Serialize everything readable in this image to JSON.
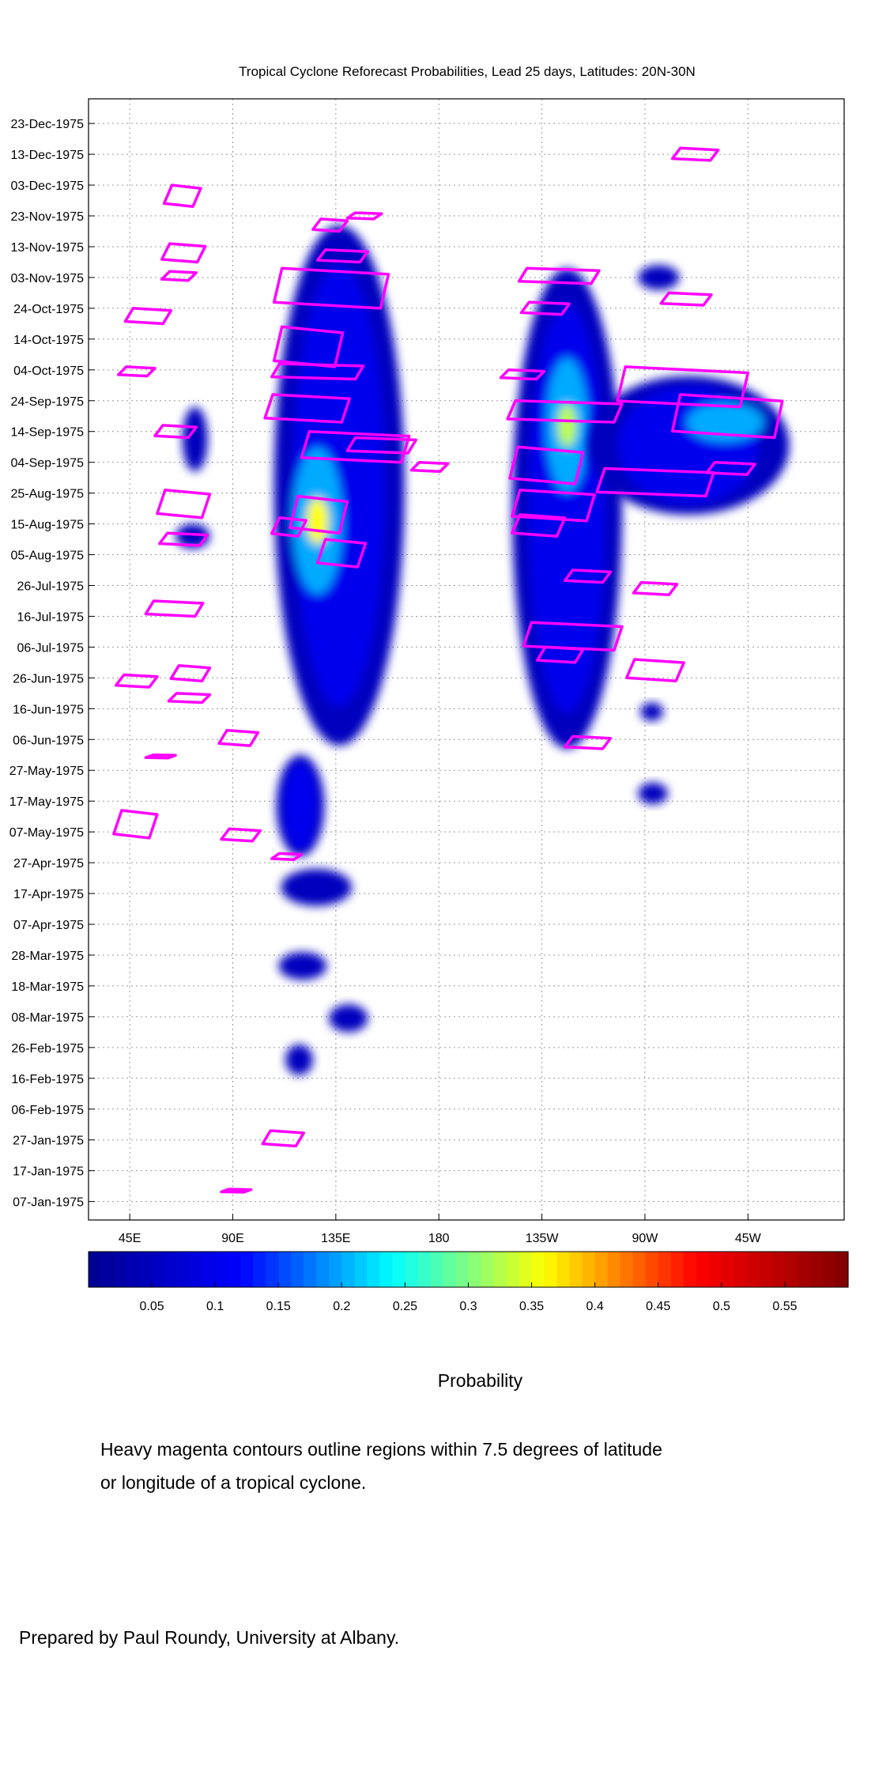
{
  "chart_data": {
    "type": "heatmap",
    "title": "Tropical Cyclone Reforecast Probabilities, Lead 25 days, Latitudes: 20N-30N",
    "x_ticks": [
      "45E",
      "90E",
      "135E",
      "180",
      "135W",
      "90W",
      "45W"
    ],
    "x_tick_values": [
      45,
      90,
      135,
      180,
      225,
      270,
      315
    ],
    "xlim": [
      27,
      357
    ],
    "x_unit": "degrees longitude east",
    "y_ticks": [
      "23-Dec-1975",
      "13-Dec-1975",
      "03-Dec-1975",
      "23-Nov-1975",
      "13-Nov-1975",
      "03-Nov-1975",
      "24-Oct-1975",
      "14-Oct-1975",
      "04-Oct-1975",
      "24-Sep-1975",
      "14-Sep-1975",
      "04-Sep-1975",
      "25-Aug-1975",
      "15-Aug-1975",
      "05-Aug-1975",
      "26-Jul-1975",
      "16-Jul-1975",
      "06-Jul-1975",
      "26-Jun-1975",
      "16-Jun-1975",
      "06-Jun-1975",
      "27-May-1975",
      "17-May-1975",
      "07-May-1975",
      "27-Apr-1975",
      "17-Apr-1975",
      "07-Apr-1975",
      "28-Mar-1975",
      "18-Mar-1975",
      "08-Mar-1975",
      "26-Feb-1975",
      "16-Feb-1975",
      "06-Feb-1975",
      "27-Jan-1975",
      "17-Jan-1975",
      "07-Jan-1975"
    ],
    "ylim": [
      "31-Dec-1975",
      "01-Jan-1975"
    ],
    "grid": true,
    "colorbar": {
      "range": [
        0,
        0.6
      ],
      "ticks": [
        "0.05",
        "0.1",
        "0.15",
        "0.2",
        "0.25",
        "0.3",
        "0.35",
        "0.4",
        "0.45",
        "0.5",
        "0.55"
      ],
      "tick_values": [
        0.05,
        0.1,
        0.15,
        0.2,
        0.25,
        0.3,
        0.35,
        0.4,
        0.45,
        0.5,
        0.55
      ],
      "label": "Probability",
      "colormap": [
        "#00008f",
        "#0000ff",
        "#00ffff",
        "#ffff00",
        "#ff0000",
        "#800000"
      ]
    },
    "probability_regions": [
      {
        "lon": [
          108,
          165
        ],
        "date": [
          "20-Nov-1975",
          "04-Jun-1975"
        ],
        "peak": 0.36,
        "peak_lon": 127,
        "peak_date": "16-Aug-1975"
      },
      {
        "lon": [
          109,
          130
        ],
        "date": [
          "01-Jun-1975",
          "29-Apr-1975"
        ],
        "peak": 0.12
      },
      {
        "lon": [
          111,
          142
        ],
        "date": [
          "25-Apr-1975",
          "13-Apr-1975"
        ],
        "peak": 0.1
      },
      {
        "lon": [
          110,
          131
        ],
        "date": [
          "29-Mar-1975",
          "20-Mar-1975"
        ],
        "peak": 0.08
      },
      {
        "lon": [
          132,
          149
        ],
        "date": [
          "12-Mar-1975",
          "03-Mar-1975"
        ],
        "peak": 0.07
      },
      {
        "lon": [
          113,
          125
        ],
        "date": [
          "27-Feb-1975",
          "17-Feb-1975"
        ],
        "peak": 0.07
      },
      {
        "lon": [
          212,
          260
        ],
        "date": [
          "06-Nov-1975",
          "03-Jun-1975"
        ],
        "peak": 0.33,
        "peak_lon": 236,
        "peak_date": "16-Sep-1975"
      },
      {
        "lon": [
          245,
          333
        ],
        "date": [
          "02-Oct-1975",
          "18-Aug-1975"
        ],
        "peak": 0.22,
        "peak_lon": 305,
        "peak_date": "17-Sep-1975"
      },
      {
        "lon": [
          267,
          285
        ],
        "date": [
          "07-Nov-1975",
          "30-Oct-1975"
        ],
        "peak": 0.08
      },
      {
        "lon": [
          68,
          79
        ],
        "date": [
          "22-Sep-1975",
          "01-Sep-1975"
        ],
        "peak": 0.07
      },
      {
        "lon": [
          65,
          80
        ],
        "date": [
          "15-Aug-1975",
          "07-Aug-1975"
        ],
        "peak": 0.07
      },
      {
        "lon": [
          267,
          280
        ],
        "date": [
          "23-May-1975",
          "16-May-1975"
        ],
        "peak": 0.06
      },
      {
        "lon": [
          268,
          278
        ],
        "date": [
          "18-Jun-1975",
          "12-Jun-1975"
        ],
        "peak": 0.05
      }
    ],
    "contour_color": "#ff00ff",
    "tc_contours": [
      {
        "lon": [
          282,
          302
        ],
        "date": [
          "15-Dec-1975",
          "11-Dec-1975"
        ]
      },
      {
        "lon": [
          60,
          76
        ],
        "date": [
          "03-Dec-1975",
          "26-Nov-1975"
        ]
      },
      {
        "lon": [
          125,
          140
        ],
        "date": [
          "22-Nov-1975",
          "18-Nov-1975"
        ]
      },
      {
        "lon": [
          140,
          155
        ],
        "date": [
          "24-Nov-1975",
          "22-Nov-1975"
        ]
      },
      {
        "lon": [
          59,
          78
        ],
        "date": [
          "14-Nov-1975",
          "08-Nov-1975"
        ]
      },
      {
        "lon": [
          127,
          149
        ],
        "date": [
          "12-Nov-1975",
          "08-Nov-1975"
        ]
      },
      {
        "lon": [
          59,
          74
        ],
        "date": [
          "05-Nov-1975",
          "02-Nov-1975"
        ]
      },
      {
        "lon": [
          108,
          158
        ],
        "date": [
          "06-Nov-1975",
          "24-Oct-1975"
        ]
      },
      {
        "lon": [
          215,
          250
        ],
        "date": [
          "06-Nov-1975",
          "01-Nov-1975"
        ]
      },
      {
        "lon": [
          277,
          299
        ],
        "date": [
          "29-Oct-1975",
          "25-Oct-1975"
        ]
      },
      {
        "lon": [
          216,
          237
        ],
        "date": [
          "26-Oct-1975",
          "22-Oct-1975"
        ]
      },
      {
        "lon": [
          43,
          63
        ],
        "date": [
          "24-Oct-1975",
          "19-Oct-1975"
        ]
      },
      {
        "lon": [
          108,
          138
        ],
        "date": [
          "18-Oct-1975",
          "05-Oct-1975"
        ]
      },
      {
        "lon": [
          40,
          56
        ],
        "date": [
          "05-Oct-1975",
          "02-Oct-1975"
        ]
      },
      {
        "lon": [
          107,
          147
        ],
        "date": [
          "06-Oct-1975",
          "01-Oct-1975"
        ]
      },
      {
        "lon": [
          207,
          226
        ],
        "date": [
          "04-Oct-1975",
          "01-Oct-1975"
        ]
      },
      {
        "lon": [
          258,
          315
        ],
        "date": [
          "05-Oct-1975",
          "22-Sep-1975"
        ]
      },
      {
        "lon": [
          104,
          141
        ],
        "date": [
          "26-Sep-1975",
          "17-Sep-1975"
        ]
      },
      {
        "lon": [
          210,
          260
        ],
        "date": [
          "24-Sep-1975",
          "17-Sep-1975"
        ]
      },
      {
        "lon": [
          282,
          330
        ],
        "date": [
          "26-Sep-1975",
          "12-Sep-1975"
        ]
      },
      {
        "lon": [
          56,
          74
        ],
        "date": [
          "16-Sep-1975",
          "12-Sep-1975"
        ]
      },
      {
        "lon": [
          120,
          167
        ],
        "date": [
          "14-Sep-1975",
          "04-Sep-1975"
        ]
      },
      {
        "lon": [
          140,
          170
        ],
        "date": [
          "12-Sep-1975",
          "07-Sep-1975"
        ]
      },
      {
        "lon": [
          168,
          184
        ],
        "date": [
          "04-Sep-1975",
          "01-Sep-1975"
        ]
      },
      {
        "lon": [
          211,
          243
        ],
        "date": [
          "09-Sep-1975",
          "28-Aug-1975"
        ]
      },
      {
        "lon": [
          249,
          300
        ],
        "date": [
          "02-Sep-1975",
          "24-Aug-1975"
        ]
      },
      {
        "lon": [
          297,
          318
        ],
        "date": [
          "04-Sep-1975",
          "31-Aug-1975"
        ]
      },
      {
        "lon": [
          57,
          80
        ],
        "date": [
          "26-Aug-1975",
          "17-Aug-1975"
        ]
      },
      {
        "lon": [
          115,
          140
        ],
        "date": [
          "24-Aug-1975",
          "12-Aug-1975"
        ]
      },
      {
        "lon": [
          212,
          248
        ],
        "date": [
          "26-Aug-1975",
          "16-Aug-1975"
        ]
      },
      {
        "lon": [
          212,
          235
        ],
        "date": [
          "18-Aug-1975",
          "11-Aug-1975"
        ]
      },
      {
        "lon": [
          107,
          122
        ],
        "date": [
          "17-Aug-1975",
          "11-Aug-1975"
        ]
      },
      {
        "lon": [
          58,
          79
        ],
        "date": [
          "12-Aug-1975",
          "08-Aug-1975"
        ]
      },
      {
        "lon": [
          127,
          148
        ],
        "date": [
          "10-Aug-1975",
          "01-Aug-1975"
        ]
      },
      {
        "lon": [
          235,
          255
        ],
        "date": [
          "31-Jul-1975",
          "27-Jul-1975"
        ]
      },
      {
        "lon": [
          265,
          284
        ],
        "date": [
          "27-Jul-1975",
          "23-Jul-1975"
        ]
      },
      {
        "lon": [
          52,
          77
        ],
        "date": [
          "21-Jul-1975",
          "16-Jul-1975"
        ]
      },
      {
        "lon": [
          217,
          260
        ],
        "date": [
          "14-Jul-1975",
          "05-Jul-1975"
        ]
      },
      {
        "lon": [
          223,
          243
        ],
        "date": [
          "06-Jul-1975",
          "01-Jul-1975"
        ]
      },
      {
        "lon": [
          262,
          287
        ],
        "date": [
          "02-Jul-1975",
          "25-Jun-1975"
        ]
      },
      {
        "lon": [
          63,
          80
        ],
        "date": [
          "30-Jun-1975",
          "25-Jun-1975"
        ]
      },
      {
        "lon": [
          39,
          57
        ],
        "date": [
          "27-Jun-1975",
          "23-Jun-1975"
        ]
      },
      {
        "lon": [
          62,
          80
        ],
        "date": [
          "21-Jun-1975",
          "18-Jun-1975"
        ]
      },
      {
        "lon": [
          84,
          101
        ],
        "date": [
          "09-Jun-1975",
          "04-Jun-1975"
        ]
      },
      {
        "lon": [
          52,
          65
        ],
        "date": [
          "01-Jun-1975",
          "31-May-1975"
        ]
      },
      {
        "lon": [
          235,
          255
        ],
        "date": [
          "07-Jun-1975",
          "03-Jun-1975"
        ]
      },
      {
        "lon": [
          38,
          57
        ],
        "date": [
          "14-May-1975",
          "05-May-1975"
        ]
      },
      {
        "lon": [
          85,
          102
        ],
        "date": [
          "08-May-1975",
          "04-May-1975"
        ]
      },
      {
        "lon": [
          107,
          120
        ],
        "date": [
          "30-Apr-1975",
          "28-Apr-1975"
        ]
      },
      {
        "lon": [
          103,
          121
        ],
        "date": [
          "30-Jan-1975",
          "25-Jan-1975"
        ]
      },
      {
        "lon": [
          85,
          98
        ],
        "date": [
          "11-Jan-1975",
          "10-Jan-1975"
        ]
      }
    ]
  },
  "notes": {
    "line1": "Heavy magenta contours outline regions within 7.5 degrees of latitude",
    "line2": "or longitude of a tropical cyclone.",
    "credit": "Prepared by Paul Roundy, University at Albany."
  }
}
